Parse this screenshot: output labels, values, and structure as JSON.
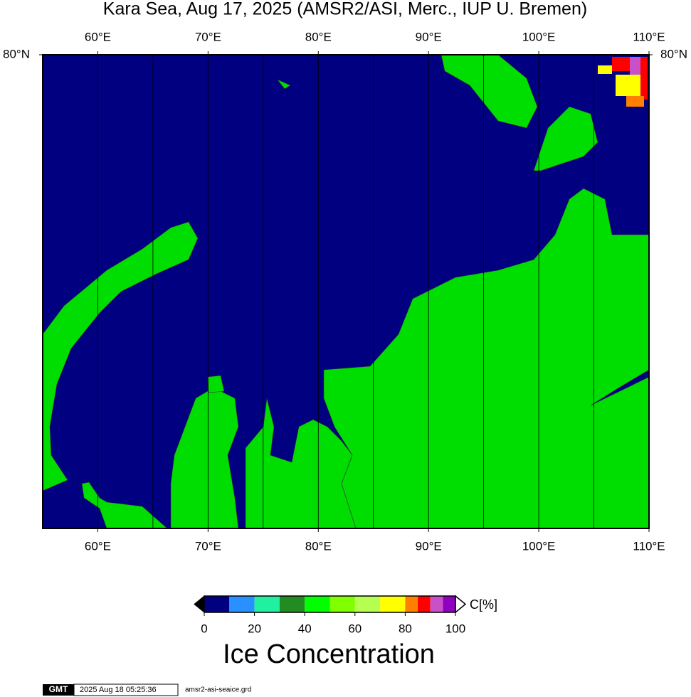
{
  "title": "Kara Sea, Aug 17, 2025 (AMSR2/ASI, Merc., IUP U. Bremen)",
  "map": {
    "lonlim": [
      55,
      110
    ],
    "latlim": [
      70,
      80
    ],
    "lon_ticks": [
      {
        "value": 60,
        "label": "60°E"
      },
      {
        "value": 70,
        "label": "70°E"
      },
      {
        "value": 80,
        "label": "80°E"
      },
      {
        "value": 90,
        "label": "90°E"
      },
      {
        "value": 100,
        "label": "100°E"
      },
      {
        "value": 110,
        "label": "110°E"
      }
    ],
    "lat_ticks": [
      {
        "value": 80,
        "label": "80°N"
      }
    ],
    "grid_lons": [
      60,
      65,
      70,
      75,
      80,
      85,
      90,
      95,
      100,
      105
    ],
    "ocean_color": "#000080",
    "land_color": "#00dd00"
  },
  "colorbar": {
    "label": "C[%]",
    "title": "Ice Concentration",
    "lim": [
      0,
      100
    ],
    "ticks": [
      0,
      20,
      40,
      60,
      80,
      100
    ],
    "levels": [
      0,
      10,
      20,
      30,
      40,
      50,
      60,
      70,
      80,
      85,
      90,
      95,
      100
    ],
    "colors": [
      "#000080",
      "#2890ff",
      "#20f0a0",
      "#228b22",
      "#00ff00",
      "#80ff00",
      "#b4ff50",
      "#ffff00",
      "#ff8000",
      "#ff0000",
      "#c850c8",
      "#9000c0"
    ]
  },
  "footer": {
    "logo": "GMT",
    "timestamp": "2025 Aug 18 05:25:36",
    "file": "amsr2-asi-seaice.grd"
  }
}
